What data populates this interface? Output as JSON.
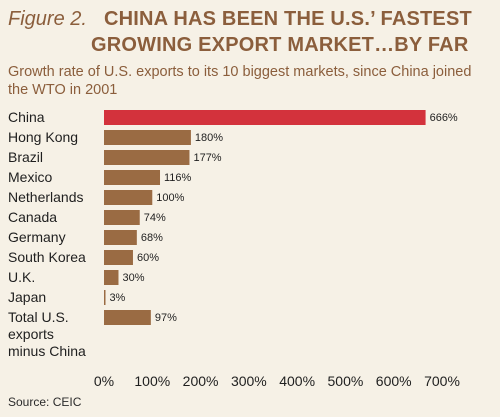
{
  "figure_label": "Figure 2.",
  "title_line1": "CHINA HAS BEEN THE U.S.’ FASTEST",
  "title_line2": "GROWING EXPORT MARKET…BY FAR",
  "subtitle": "Growth rate of U.S. exports to its 10 biggest markets, since China joined the WTO in 2001",
  "source": "Source: CEIC",
  "colors": {
    "highlight_bar": "#d3323c",
    "bar": "#9a6b43",
    "title": "#8b5e3c",
    "background": "#f6f1e6"
  },
  "chart_data": {
    "type": "bar",
    "orientation": "horizontal",
    "categories": [
      [
        "China"
      ],
      [
        "Hong Kong"
      ],
      [
        "Brazil"
      ],
      [
        "Mexico"
      ],
      [
        "Netherlands"
      ],
      [
        "Canada"
      ],
      [
        "Germany"
      ],
      [
        "South Korea"
      ],
      [
        "U.K."
      ],
      [
        "Japan"
      ],
      [
        "Total U.S.",
        "exports",
        "minus China"
      ]
    ],
    "values": [
      666,
      180,
      177,
      116,
      100,
      74,
      68,
      60,
      30,
      3,
      97
    ],
    "value_labels": [
      "666%",
      "180%",
      "177%",
      "116%",
      "100%",
      "74%",
      "68%",
      "60%",
      "30%",
      "3%",
      "97%"
    ],
    "highlight_index": 0,
    "xlim": [
      0,
      700
    ],
    "x_ticks": [
      0,
      100,
      200,
      300,
      400,
      500,
      600,
      700
    ],
    "x_tick_labels": [
      "0%",
      "100%",
      "200%",
      "300%",
      "400%",
      "500%",
      "600%",
      "700%"
    ],
    "grid": false
  }
}
